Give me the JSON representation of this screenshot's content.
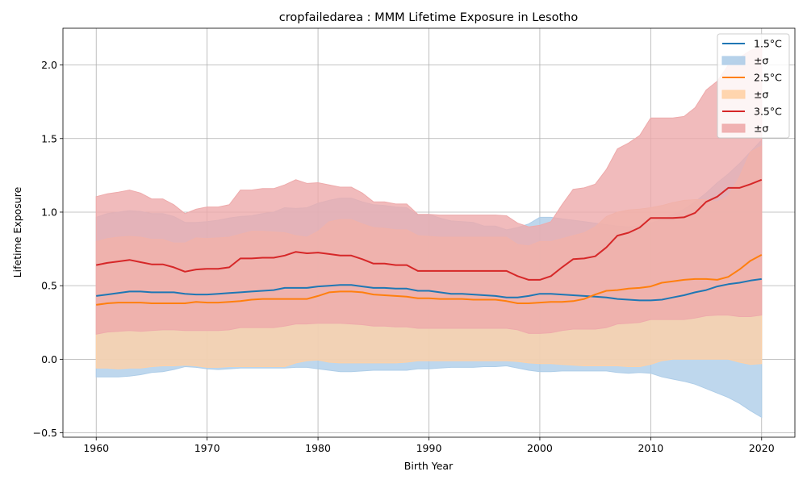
{
  "chart_data": {
    "type": "line",
    "title": "cropfailedarea : MMM Lifetime Exposure in Lesotho",
    "xlabel": "Birth Year",
    "ylabel": "Lifetime Exposure",
    "xlim": [
      1957,
      2023
    ],
    "ylim": [
      -0.53,
      2.25
    ],
    "xticks": [
      1960,
      1970,
      1980,
      1990,
      2000,
      2010,
      2020
    ],
    "yticks": [
      -0.5,
      0.0,
      0.5,
      1.0,
      1.5,
      2.0
    ],
    "xtick_labels": [
      "1960",
      "1970",
      "1980",
      "1990",
      "2000",
      "2010",
      "2020"
    ],
    "ytick_labels": [
      "−0.5",
      "0.0",
      "0.5",
      "1.0",
      "1.5",
      "2.0"
    ],
    "grid": true,
    "legend_position": "top-right",
    "legend_band_label": "±σ",
    "x": [
      1960,
      1961,
      1962,
      1963,
      1964,
      1965,
      1966,
      1967,
      1968,
      1969,
      1970,
      1971,
      1972,
      1973,
      1974,
      1975,
      1976,
      1977,
      1978,
      1979,
      1980,
      1981,
      1982,
      1983,
      1984,
      1985,
      1986,
      1987,
      1988,
      1989,
      1990,
      1991,
      1992,
      1993,
      1994,
      1995,
      1996,
      1997,
      1998,
      1999,
      2000,
      2001,
      2002,
      2003,
      2004,
      2005,
      2006,
      2007,
      2008,
      2009,
      2010,
      2011,
      2012,
      2013,
      2014,
      2015,
      2016,
      2017,
      2018,
      2019,
      2020
    ],
    "series": [
      {
        "name": "1.5°C",
        "color": "#1f77b4",
        "band_color": "#aecde8",
        "values": [
          0.43,
          0.44,
          0.45,
          0.46,
          0.46,
          0.455,
          0.455,
          0.455,
          0.445,
          0.44,
          0.44,
          0.445,
          0.45,
          0.455,
          0.46,
          0.465,
          0.47,
          0.485,
          0.485,
          0.485,
          0.495,
          0.5,
          0.505,
          0.505,
          0.495,
          0.485,
          0.485,
          0.48,
          0.48,
          0.465,
          0.465,
          0.455,
          0.445,
          0.445,
          0.44,
          0.435,
          0.43,
          0.42,
          0.42,
          0.43,
          0.445,
          0.445,
          0.44,
          0.435,
          0.43,
          0.425,
          0.42,
          0.41,
          0.405,
          0.4,
          0.4,
          0.405,
          0.42,
          0.435,
          0.455,
          0.47,
          0.495,
          0.51,
          0.52,
          0.535,
          0.545
        ],
        "upper": [
          0.965,
          0.99,
          1.0,
          1.01,
          1.005,
          0.99,
          0.99,
          0.97,
          0.93,
          0.93,
          0.935,
          0.945,
          0.96,
          0.97,
          0.975,
          0.99,
          1.0,
          1.03,
          1.025,
          1.03,
          1.06,
          1.08,
          1.095,
          1.095,
          1.07,
          1.05,
          1.045,
          1.035,
          1.03,
          0.98,
          0.985,
          0.96,
          0.94,
          0.935,
          0.93,
          0.905,
          0.905,
          0.88,
          0.895,
          0.92,
          0.965,
          0.965,
          0.955,
          0.945,
          0.935,
          0.925,
          0.915,
          0.905,
          0.9,
          0.905,
          0.925,
          0.95,
          0.985,
          1.02,
          1.07,
          1.13,
          1.2,
          1.26,
          1.33,
          1.41,
          1.49
        ],
        "lower": [
          -0.12,
          -0.12,
          -0.12,
          -0.115,
          -0.105,
          -0.09,
          -0.085,
          -0.07,
          -0.05,
          -0.055,
          -0.065,
          -0.07,
          -0.065,
          -0.06,
          -0.06,
          -0.06,
          -0.06,
          -0.06,
          -0.055,
          -0.055,
          -0.065,
          -0.075,
          -0.085,
          -0.085,
          -0.08,
          -0.075,
          -0.075,
          -0.075,
          -0.075,
          -0.065,
          -0.065,
          -0.06,
          -0.055,
          -0.055,
          -0.055,
          -0.05,
          -0.05,
          -0.045,
          -0.06,
          -0.075,
          -0.085,
          -0.085,
          -0.08,
          -0.08,
          -0.08,
          -0.08,
          -0.08,
          -0.09,
          -0.095,
          -0.09,
          -0.095,
          -0.12,
          -0.135,
          -0.15,
          -0.17,
          -0.2,
          -0.23,
          -0.26,
          -0.3,
          -0.35,
          -0.395
        ]
      },
      {
        "name": "2.5°C",
        "color": "#ff7f0e",
        "band_color": "#ffd1a6",
        "values": [
          0.37,
          0.38,
          0.385,
          0.385,
          0.385,
          0.38,
          0.38,
          0.38,
          0.38,
          0.39,
          0.385,
          0.385,
          0.39,
          0.395,
          0.405,
          0.41,
          0.41,
          0.41,
          0.41,
          0.41,
          0.43,
          0.455,
          0.46,
          0.46,
          0.455,
          0.44,
          0.435,
          0.43,
          0.425,
          0.415,
          0.415,
          0.41,
          0.41,
          0.41,
          0.405,
          0.405,
          0.405,
          0.395,
          0.38,
          0.38,
          0.385,
          0.39,
          0.39,
          0.395,
          0.41,
          0.44,
          0.465,
          0.47,
          0.48,
          0.485,
          0.495,
          0.52,
          0.53,
          0.54,
          0.545,
          0.545,
          0.54,
          0.56,
          0.61,
          0.67,
          0.71
        ],
        "upper": [
          0.8,
          0.82,
          0.83,
          0.835,
          0.83,
          0.815,
          0.815,
          0.79,
          0.79,
          0.825,
          0.82,
          0.825,
          0.83,
          0.85,
          0.87,
          0.87,
          0.865,
          0.86,
          0.84,
          0.83,
          0.87,
          0.935,
          0.95,
          0.95,
          0.92,
          0.895,
          0.89,
          0.88,
          0.88,
          0.84,
          0.835,
          0.83,
          0.83,
          0.83,
          0.83,
          0.83,
          0.83,
          0.83,
          0.78,
          0.77,
          0.8,
          0.8,
          0.82,
          0.84,
          0.86,
          0.9,
          0.97,
          1.0,
          1.015,
          1.02,
          1.03,
          1.045,
          1.065,
          1.08,
          1.085,
          1.085,
          1.07,
          1.11,
          1.24,
          1.41,
          1.45
        ],
        "lower": [
          -0.06,
          -0.06,
          -0.065,
          -0.06,
          -0.06,
          -0.05,
          -0.045,
          -0.045,
          -0.04,
          -0.045,
          -0.055,
          -0.055,
          -0.05,
          -0.05,
          -0.05,
          -0.05,
          -0.05,
          -0.05,
          -0.025,
          -0.01,
          -0.005,
          -0.02,
          -0.025,
          -0.025,
          -0.025,
          -0.025,
          -0.025,
          -0.025,
          -0.02,
          -0.01,
          -0.01,
          -0.01,
          -0.01,
          -0.01,
          -0.01,
          -0.01,
          -0.01,
          -0.01,
          -0.015,
          -0.025,
          -0.03,
          -0.03,
          -0.035,
          -0.04,
          -0.045,
          -0.045,
          -0.045,
          -0.045,
          -0.05,
          -0.05,
          -0.035,
          -0.01,
          0.0,
          0.0,
          0.0,
          0.0,
          0.0,
          0.0,
          -0.02,
          -0.035,
          -0.03
        ]
      },
      {
        "name": "3.5°C",
        "color": "#d62728",
        "band_color": "#eeaaab",
        "values": [
          0.64,
          0.655,
          0.665,
          0.675,
          0.66,
          0.645,
          0.645,
          0.625,
          0.595,
          0.61,
          0.615,
          0.615,
          0.625,
          0.685,
          0.685,
          0.69,
          0.69,
          0.705,
          0.73,
          0.72,
          0.725,
          0.715,
          0.705,
          0.705,
          0.68,
          0.65,
          0.65,
          0.64,
          0.64,
          0.6,
          0.6,
          0.6,
          0.6,
          0.6,
          0.6,
          0.6,
          0.6,
          0.6,
          0.565,
          0.54,
          0.54,
          0.565,
          0.625,
          0.68,
          0.685,
          0.7,
          0.76,
          0.84,
          0.86,
          0.895,
          0.96,
          0.96,
          0.96,
          0.965,
          0.995,
          1.07,
          1.105,
          1.165,
          1.165,
          1.19,
          1.22
        ],
        "upper": [
          1.105,
          1.125,
          1.135,
          1.15,
          1.13,
          1.09,
          1.09,
          1.05,
          0.99,
          1.02,
          1.035,
          1.035,
          1.05,
          1.15,
          1.15,
          1.16,
          1.16,
          1.185,
          1.22,
          1.195,
          1.2,
          1.185,
          1.17,
          1.17,
          1.13,
          1.07,
          1.07,
          1.055,
          1.055,
          0.985,
          0.985,
          0.98,
          0.98,
          0.98,
          0.98,
          0.98,
          0.98,
          0.975,
          0.925,
          0.9,
          0.91,
          0.935,
          1.05,
          1.155,
          1.165,
          1.19,
          1.29,
          1.43,
          1.47,
          1.52,
          1.64,
          1.64,
          1.64,
          1.65,
          1.71,
          1.83,
          1.89,
          2.0,
          2.05,
          2.1,
          2.12
        ],
        "lower": [
          0.17,
          0.185,
          0.19,
          0.195,
          0.19,
          0.195,
          0.2,
          0.2,
          0.195,
          0.195,
          0.195,
          0.195,
          0.2,
          0.215,
          0.215,
          0.215,
          0.215,
          0.225,
          0.24,
          0.24,
          0.245,
          0.245,
          0.245,
          0.24,
          0.235,
          0.225,
          0.225,
          0.22,
          0.22,
          0.21,
          0.21,
          0.21,
          0.21,
          0.21,
          0.21,
          0.21,
          0.21,
          0.21,
          0.2,
          0.175,
          0.175,
          0.18,
          0.195,
          0.205,
          0.205,
          0.205,
          0.215,
          0.24,
          0.245,
          0.25,
          0.27,
          0.27,
          0.27,
          0.27,
          0.28,
          0.295,
          0.3,
          0.3,
          0.29,
          0.29,
          0.3
        ]
      }
    ]
  }
}
